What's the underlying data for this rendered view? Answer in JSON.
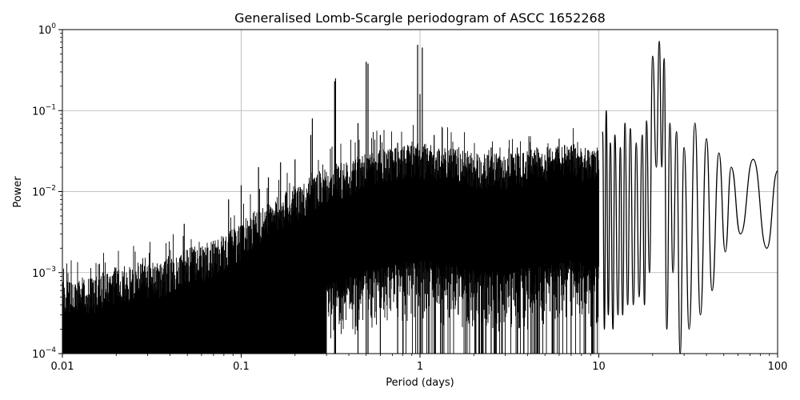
{
  "chart_data": {
    "type": "line",
    "title": "Generalised Lomb-Scargle periodogram of ASCC 1652268",
    "xlabel": "Period (days)",
    "ylabel": "Power",
    "xscale": "log",
    "yscale": "log",
    "xlim": [
      0.01,
      100
    ],
    "ylim": [
      0.0001,
      1
    ],
    "grid": true,
    "line_color": "#000000",
    "grid_color": "#b0b0b0",
    "x_ticks": [
      {
        "value": 0.01,
        "label": "0.01"
      },
      {
        "value": 0.1,
        "label": "0.1"
      },
      {
        "value": 1,
        "label": "1"
      },
      {
        "value": 10,
        "label": "10"
      },
      {
        "value": 100,
        "label": "100"
      }
    ],
    "y_ticks": [
      {
        "value": 0.0001,
        "base": "10",
        "exp": "−4"
      },
      {
        "value": 0.001,
        "base": "10",
        "exp": "−3"
      },
      {
        "value": 0.01,
        "base": "10",
        "exp": "−2"
      },
      {
        "value": 0.1,
        "base": "10",
        "exp": "−1"
      },
      {
        "value": 1,
        "base": "10",
        "exp": "0"
      }
    ],
    "series": [
      {
        "envelope": [
          [
            0.01,
            0.0008
          ],
          [
            0.0125,
            0.0008
          ],
          [
            0.015,
            0.0009
          ],
          [
            0.02,
            0.0012
          ],
          [
            0.025,
            0.0012
          ],
          [
            0.03,
            0.0014
          ],
          [
            0.035,
            0.0013
          ],
          [
            0.04,
            0.0016
          ],
          [
            0.05,
            0.002
          ],
          [
            0.06,
            0.0022
          ],
          [
            0.07,
            0.0025
          ],
          [
            0.08,
            0.003
          ],
          [
            0.1,
            0.004
          ],
          [
            0.12,
            0.006
          ],
          [
            0.15,
            0.008
          ],
          [
            0.2,
            0.012
          ],
          [
            0.3,
            0.02
          ],
          [
            0.4,
            0.025
          ],
          [
            0.5,
            0.03
          ],
          [
            0.7,
            0.035
          ],
          [
            1.0,
            0.04
          ],
          [
            1.5,
            0.035
          ],
          [
            2.0,
            0.03
          ],
          [
            3.0,
            0.03
          ],
          [
            5.0,
            0.035
          ],
          [
            7.0,
            0.04
          ],
          [
            9.0,
            0.035
          ]
        ],
        "peaks": [
          [
            0.048,
            0.004
          ],
          [
            0.085,
            0.008
          ],
          [
            0.1,
            0.012
          ],
          [
            0.125,
            0.02
          ],
          [
            0.142,
            0.015
          ],
          [
            0.166,
            0.023
          ],
          [
            0.2,
            0.025
          ],
          [
            0.245,
            0.05
          ],
          [
            0.25,
            0.08
          ],
          [
            0.333,
            0.23
          ],
          [
            0.337,
            0.25
          ],
          [
            0.5,
            0.4
          ],
          [
            0.512,
            0.38
          ],
          [
            0.45,
            0.07
          ],
          [
            0.97,
            0.65
          ],
          [
            1.0,
            0.16
          ],
          [
            1.03,
            0.6
          ],
          [
            0.6,
            0.05
          ],
          [
            0.75,
            0.04
          ],
          [
            1.2,
            0.05
          ],
          [
            1.8,
            0.03
          ],
          [
            2.5,
            0.035
          ],
          [
            3.5,
            0.035
          ],
          [
            4.5,
            0.035
          ],
          [
            6.0,
            0.045
          ],
          [
            7.0,
            0.035
          ]
        ],
        "lobes": [
          [
            10.5,
            0.055
          ],
          [
            11.0,
            0.1
          ],
          [
            11.6,
            0.04
          ],
          [
            12.3,
            0.05
          ],
          [
            13.2,
            0.035
          ],
          [
            14.0,
            0.07
          ],
          [
            15.0,
            0.06
          ],
          [
            16.2,
            0.04
          ],
          [
            17.5,
            0.05
          ],
          [
            18.5,
            0.075
          ],
          [
            20.0,
            0.47
          ],
          [
            21.8,
            0.72
          ],
          [
            23.2,
            0.44
          ],
          [
            25.0,
            0.07
          ],
          [
            27.2,
            0.055
          ],
          [
            30.0,
            0.035
          ],
          [
            34.5,
            0.07
          ],
          [
            40.0,
            0.045
          ],
          [
            47.0,
            0.03
          ],
          [
            55.0,
            0.02
          ],
          [
            73.0,
            0.025
          ],
          [
            100.0,
            0.018
          ]
        ],
        "troughs": [
          [
            10.75,
            0.0002
          ],
          [
            11.3,
            0.0003
          ],
          [
            12.0,
            0.0002
          ],
          [
            12.8,
            0.0003
          ],
          [
            13.6,
            0.0003
          ],
          [
            14.5,
            0.0004
          ],
          [
            15.6,
            0.0004
          ],
          [
            16.8,
            0.0005
          ],
          [
            18.0,
            0.0004
          ],
          [
            19.2,
            0.001
          ],
          [
            21.0,
            0.02
          ],
          [
            22.5,
            0.02
          ],
          [
            24.0,
            0.0002
          ],
          [
            26.0,
            0.001
          ],
          [
            28.5,
            0.0001
          ],
          [
            32.0,
            0.0002
          ],
          [
            37.0,
            0.0003
          ],
          [
            43.0,
            0.0006
          ],
          [
            51.0,
            0.0018
          ],
          [
            62.0,
            0.003
          ],
          [
            87.0,
            0.002
          ]
        ]
      }
    ]
  }
}
